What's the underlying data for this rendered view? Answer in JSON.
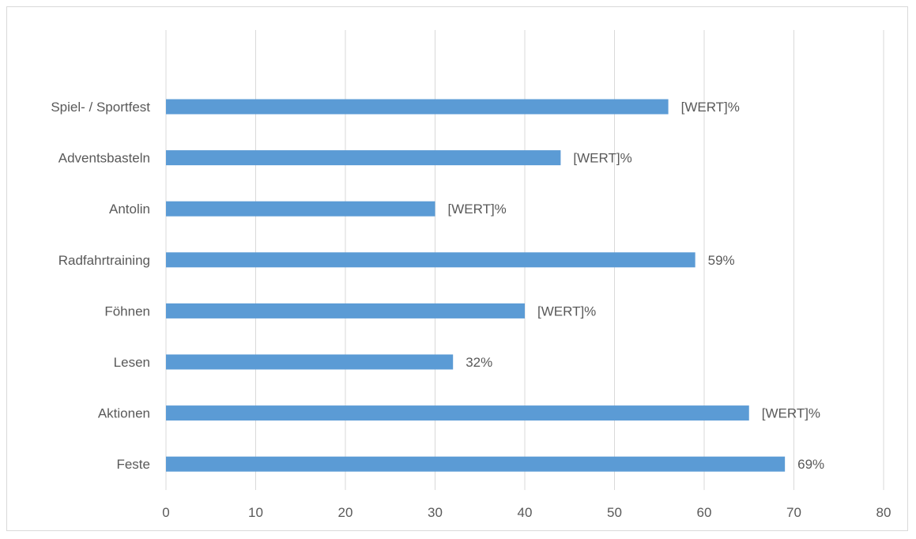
{
  "chart_data": {
    "type": "bar",
    "orientation": "horizontal",
    "title": "",
    "xlabel": "",
    "ylabel": "",
    "xlim": [
      0,
      80
    ],
    "x_ticks": [
      0,
      10,
      20,
      30,
      40,
      50,
      60,
      70,
      80
    ],
    "grid": "vertical",
    "legend": "none",
    "bar_color": "#5b9bd5",
    "grid_color": "#d9d9d9",
    "categories": [
      "Spiel- / Sportfest",
      "Adventsbasteln",
      "Antolin",
      "Radfahrtraining",
      "Föhnen",
      "Lesen",
      "Aktionen",
      "Feste"
    ],
    "values": [
      56,
      44,
      30,
      59,
      40,
      32,
      65,
      69
    ],
    "data_labels": [
      "[WERT]%",
      "[WERT]%",
      "[WERT]%",
      "59%",
      "[WERT]%",
      "32%",
      "[WERT]%",
      "69%"
    ]
  }
}
